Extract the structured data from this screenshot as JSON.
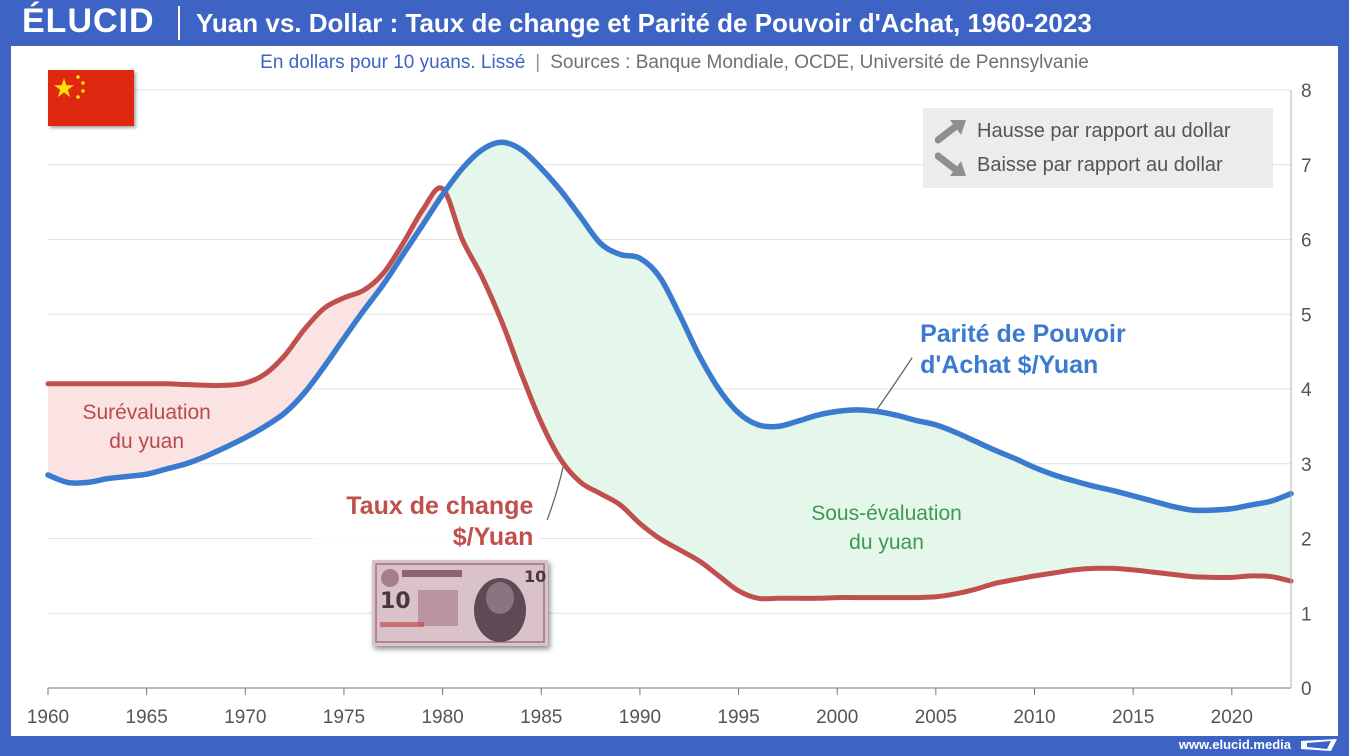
{
  "header": {
    "logo": "ÉLUCID",
    "title": "Yuan vs. Dollar : Taux de change et Parité de Pouvoir d'Achat, 1960-2023"
  },
  "subtitle": {
    "unit": "En dollars pour 10 yuans. Lissé",
    "separator": "|",
    "sources": "Sources : Banque Mondiale, OCDE, Université de Pennsylvanie"
  },
  "legend": {
    "up_label": "Hausse par rapport au dollar",
    "down_label": "Baisse par rapport au dollar",
    "up_icon": "arrow-up-right-icon",
    "down_icon": "arrow-down-right-icon"
  },
  "footer": {
    "url": "www.elucid.media"
  },
  "colors": {
    "brand_blue": "#3d63c4",
    "ppp_line": "#3a7bd0",
    "exchange_line": "#c0504d",
    "overvalued_fill": "#fbe3e3",
    "undervalued_fill": "#e5f6ea",
    "undervalued_text": "#3e9a52",
    "overvalued_text": "#b84a4a"
  },
  "chart_data": {
    "type": "line",
    "title": "Yuan vs. Dollar : Taux de change et Parité de Pouvoir d'Achat, 1960-2023",
    "subtitle": "En dollars pour 10 yuans. Lissé",
    "xlim": [
      1960,
      2023
    ],
    "ylim": [
      0,
      8
    ],
    "x_ticks": [
      1960,
      1965,
      1970,
      1975,
      1980,
      1985,
      1990,
      1995,
      2000,
      2005,
      2010,
      2015,
      2020
    ],
    "y_ticks": [
      0,
      1,
      2,
      3,
      4,
      5,
      6,
      7,
      8
    ],
    "y_axis_side": "right",
    "grid": "horizontal",
    "series": [
      {
        "name": "Parité de Pouvoir d'Achat $/Yuan",
        "label_lines": [
          "Parité de Pouvoir",
          "d'Achat $/Yuan"
        ],
        "color": "#3a7bd0",
        "x": [
          1960,
          1961,
          1962,
          1963,
          1964,
          1965,
          1966,
          1967,
          1968,
          1969,
          1970,
          1971,
          1972,
          1973,
          1974,
          1975,
          1976,
          1977,
          1978,
          1979,
          1980,
          1981,
          1982,
          1983,
          1984,
          1985,
          1986,
          1987,
          1988,
          1989,
          1990,
          1991,
          1992,
          1993,
          1994,
          1995,
          1996,
          1997,
          1998,
          1999,
          2000,
          2001,
          2002,
          2003,
          2004,
          2005,
          2006,
          2007,
          2008,
          2009,
          2010,
          2011,
          2012,
          2013,
          2014,
          2015,
          2016,
          2017,
          2018,
          2019,
          2020,
          2021,
          2022,
          2023
        ],
        "values": [
          2.85,
          2.75,
          2.75,
          2.8,
          2.83,
          2.86,
          2.93,
          3.0,
          3.1,
          3.22,
          3.35,
          3.5,
          3.68,
          3.95,
          4.3,
          4.68,
          5.05,
          5.4,
          5.8,
          6.2,
          6.6,
          6.95,
          7.2,
          7.3,
          7.2,
          6.95,
          6.65,
          6.3,
          5.95,
          5.8,
          5.75,
          5.5,
          5.0,
          4.45,
          4.0,
          3.68,
          3.52,
          3.5,
          3.57,
          3.65,
          3.7,
          3.72,
          3.7,
          3.65,
          3.58,
          3.52,
          3.42,
          3.3,
          3.18,
          3.07,
          2.95,
          2.85,
          2.77,
          2.7,
          2.64,
          2.57,
          2.5,
          2.43,
          2.38,
          2.38,
          2.4,
          2.45,
          2.5,
          2.6
        ]
      },
      {
        "name": "Taux de change $/Yuan",
        "label_lines": [
          "Taux de change",
          "$/Yuan"
        ],
        "color": "#c0504d",
        "x": [
          1960,
          1961,
          1962,
          1963,
          1964,
          1965,
          1966,
          1967,
          1968,
          1969,
          1970,
          1971,
          1972,
          1973,
          1974,
          1975,
          1976,
          1977,
          1978,
          1979,
          1980,
          1981,
          1982,
          1983,
          1984,
          1985,
          1986,
          1987,
          1988,
          1989,
          1990,
          1991,
          1992,
          1993,
          1994,
          1995,
          1996,
          1997,
          1998,
          1999,
          2000,
          2001,
          2002,
          2003,
          2004,
          2005,
          2006,
          2007,
          2008,
          2009,
          2010,
          2011,
          2012,
          2013,
          2014,
          2015,
          2016,
          2017,
          2018,
          2019,
          2020,
          2021,
          2022,
          2023
        ],
        "values": [
          4.07,
          4.07,
          4.07,
          4.07,
          4.07,
          4.07,
          4.07,
          4.06,
          4.05,
          4.05,
          4.08,
          4.2,
          4.45,
          4.8,
          5.08,
          5.22,
          5.32,
          5.55,
          5.95,
          6.4,
          6.68,
          6.0,
          5.5,
          4.9,
          4.2,
          3.55,
          3.05,
          2.75,
          2.6,
          2.45,
          2.2,
          2.0,
          1.85,
          1.7,
          1.5,
          1.3,
          1.2,
          1.2,
          1.2,
          1.2,
          1.21,
          1.21,
          1.21,
          1.21,
          1.21,
          1.22,
          1.26,
          1.32,
          1.4,
          1.45,
          1.5,
          1.54,
          1.58,
          1.6,
          1.6,
          1.58,
          1.55,
          1.52,
          1.49,
          1.48,
          1.48,
          1.5,
          1.49,
          1.43
        ]
      }
    ],
    "annotations": [
      {
        "id": "over",
        "lines": [
          "Surévaluation",
          "du yuan"
        ],
        "x": 1965,
        "y": 3.6
      },
      {
        "id": "under",
        "lines": [
          "Sous-évaluation",
          "du yuan"
        ],
        "x": 2002.5,
        "y": 2.25
      }
    ]
  }
}
